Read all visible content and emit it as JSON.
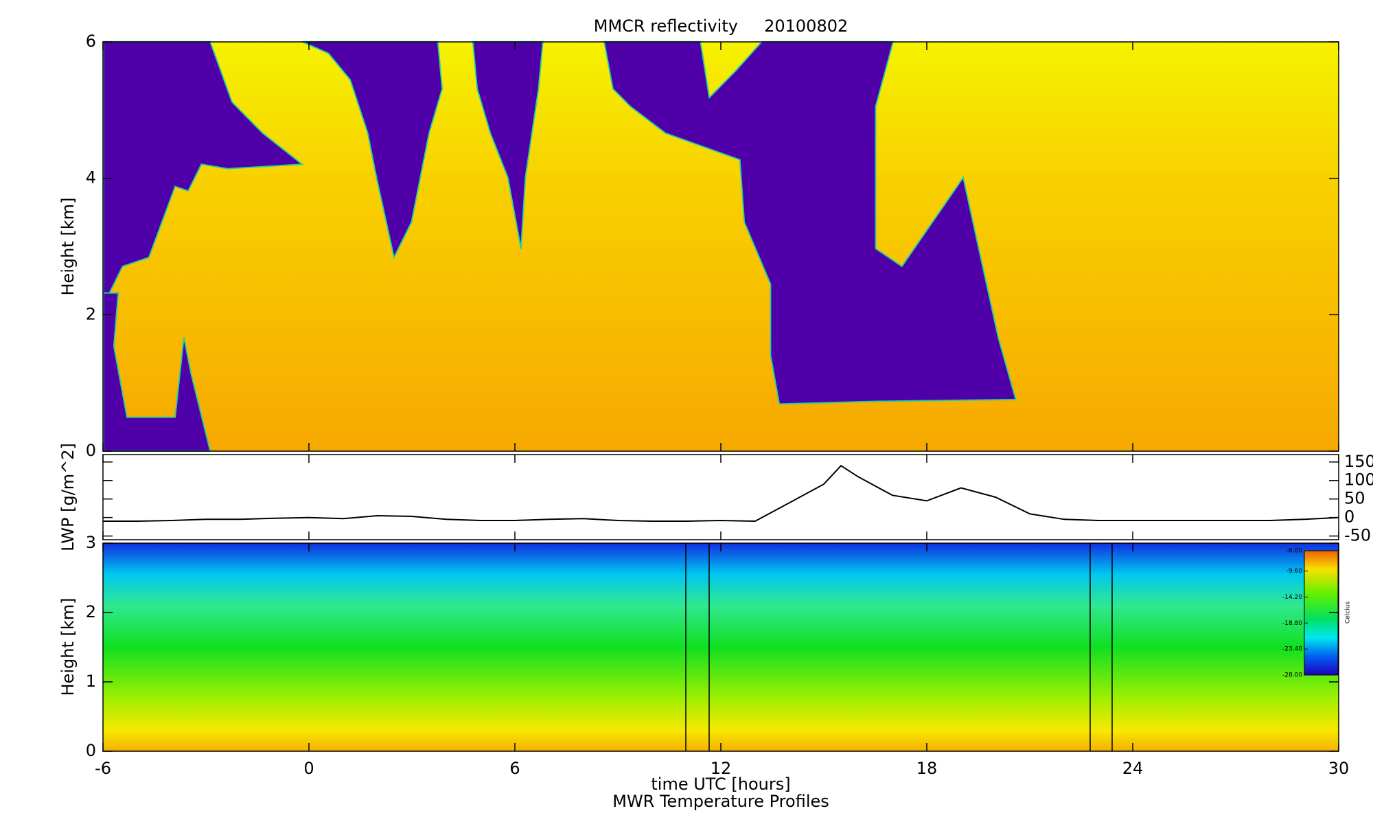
{
  "chart_data": [
    {
      "type": "heatmap",
      "title": "MMCR reflectivity     20100802",
      "ylabel": "Height [km]",
      "xlim": [
        -6,
        30
      ],
      "ylim": [
        0,
        6
      ],
      "yticks": [
        0,
        2,
        4,
        6
      ]
    },
    {
      "type": "line",
      "ylabel": "LWP [g/m^2]",
      "xlim": [
        -6,
        30
      ],
      "ylim": [
        -60,
        170
      ],
      "yticks": [
        -50,
        0,
        50,
        100,
        150
      ],
      "x": [
        -6,
        -5,
        -4,
        -3,
        -2,
        -1,
        0,
        1,
        2,
        3,
        4,
        5,
        6,
        7,
        8,
        9,
        10,
        11,
        12,
        13,
        14,
        15,
        15.5,
        16,
        17,
        18,
        19,
        20,
        21,
        22,
        23,
        24,
        25,
        26,
        27,
        28,
        29,
        30
      ],
      "values": [
        -10,
        -10,
        -8,
        -5,
        -5,
        -2,
        0,
        -3,
        5,
        3,
        -5,
        -8,
        -8,
        -5,
        -3,
        -8,
        -10,
        -10,
        -8,
        -10,
        40,
        90,
        140,
        110,
        60,
        45,
        80,
        55,
        10,
        -5,
        -8,
        -8,
        -8,
        -8,
        -8,
        -8,
        -5,
        0
      ],
      "color": "#000000"
    },
    {
      "type": "contour",
      "subtitle": "MWR Temperature Profiles",
      "ylabel": "Height [km]",
      "xlabel": "time UTC [hours]",
      "xlim": [
        -6,
        30
      ],
      "xticks": [
        -6,
        0,
        6,
        12,
        18,
        24,
        30
      ],
      "ylim": [
        0,
        3
      ],
      "yticks": [
        0,
        1,
        2,
        3
      ],
      "colorbar": {
        "label": "Celcius",
        "clim": [
          -28,
          -6
        ],
        "ticks": [
          {
            "value": -6,
            "label": "-6.00"
          },
          {
            "value": -9.6,
            "label": "-9.60"
          },
          {
            "value": -14.2,
            "label": "-14.20"
          },
          {
            "value": -18.8,
            "label": "-18.80"
          },
          {
            "value": -23.4,
            "label": "-23.40"
          },
          {
            "value": -28,
            "label": "-28.00"
          }
        ]
      }
    }
  ]
}
